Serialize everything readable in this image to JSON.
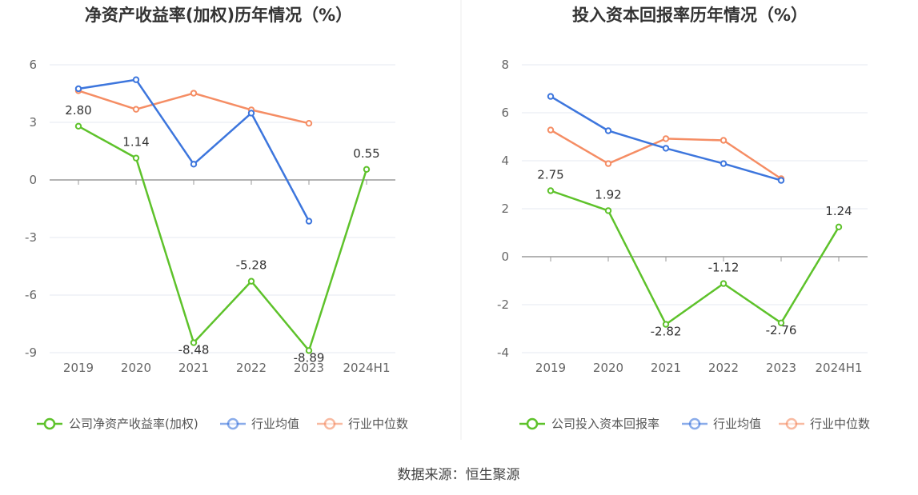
{
  "chart_data": [
    {
      "type": "line",
      "title": "净资产收益率(加权)历年情况（%）",
      "categories": [
        "2019",
        "2020",
        "2021",
        "2022",
        "2023",
        "2024H1"
      ],
      "y_ticks": [
        "6",
        "3",
        "0",
        "-3",
        "-6",
        "-9"
      ],
      "ylim": [
        -9,
        6
      ],
      "grid": true,
      "legend_position": "bottom",
      "series": [
        {
          "name": "公司净资产收益率(加权)",
          "color": "#5ec22b",
          "values": [
            2.8,
            1.14,
            -8.48,
            -5.28,
            -8.89,
            0.55
          ],
          "labels": [
            "2.80",
            "1.14",
            "-8.48",
            "-5.28",
            "-8.89",
            "0.55"
          ]
        },
        {
          "name": "行业均值",
          "color": "#3d76dd",
          "values": [
            4.75,
            5.22,
            0.82,
            3.48,
            -2.15,
            null
          ]
        },
        {
          "name": "行业中位数",
          "color": "#f58d64",
          "values": [
            4.65,
            3.68,
            4.52,
            3.65,
            2.95,
            null
          ]
        }
      ]
    },
    {
      "type": "line",
      "title": "投入资本回报率历年情况（%）",
      "categories": [
        "2019",
        "2020",
        "2021",
        "2022",
        "2023",
        "2024H1"
      ],
      "y_ticks": [
        "8",
        "6",
        "4",
        "2",
        "0",
        "-2",
        "-4"
      ],
      "ylim": [
        -4,
        8
      ],
      "grid": true,
      "legend_position": "bottom",
      "series": [
        {
          "name": "公司投入资本回报率",
          "color": "#5ec22b",
          "values": [
            2.75,
            1.92,
            -2.82,
            -1.12,
            -2.76,
            1.24
          ],
          "labels": [
            "2.75",
            "1.92",
            "-2.82",
            "-1.12",
            "-2.76",
            "1.24"
          ]
        },
        {
          "name": "行业均值",
          "color": "#3d76dd",
          "values": [
            6.68,
            5.25,
            4.52,
            3.88,
            3.18,
            null
          ]
        },
        {
          "name": "行业中位数",
          "color": "#f58d64",
          "values": [
            5.28,
            3.88,
            4.92,
            4.85,
            3.25,
            null
          ]
        }
      ]
    }
  ],
  "source": "数据来源：恒生聚源"
}
